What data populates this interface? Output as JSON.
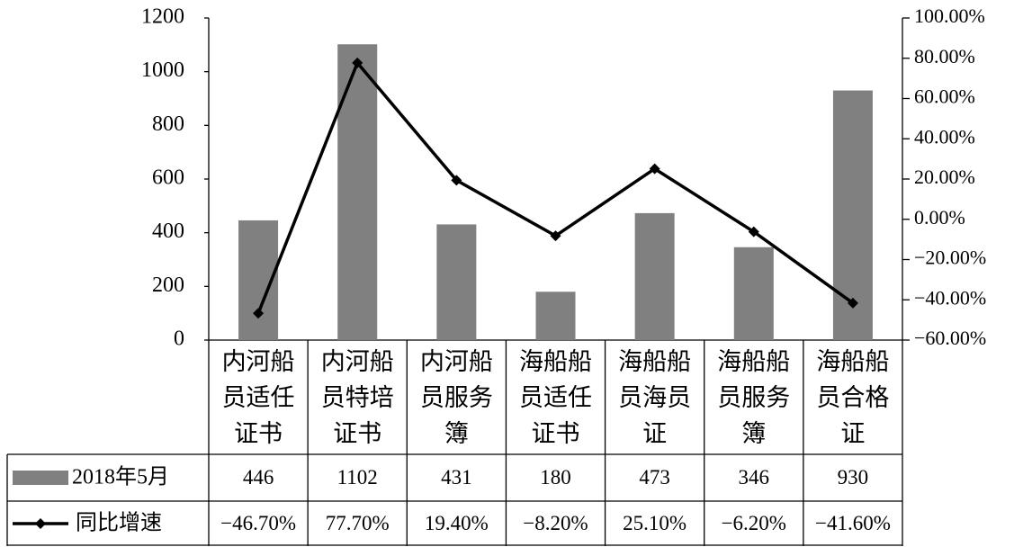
{
  "chart_data": {
    "type": "bar",
    "categories": [
      "内河船员适任证书",
      "内河船员特培证书",
      "内河船员服务簿",
      "海船船员适任证书",
      "海船船员海员证",
      "海船船员服务簿",
      "海船船员合格证"
    ],
    "series": [
      {
        "name": "2018年5月",
        "color": "#808080",
        "values": [
          446,
          1102,
          431,
          180,
          473,
          346,
          930
        ]
      },
      {
        "name": "同比增速",
        "type": "line",
        "axis": "y2",
        "color": "#000000",
        "values": [
          -46.7,
          77.7,
          19.4,
          -8.2,
          25.1,
          -6.2,
          -41.6
        ],
        "value_labels": [
          "−46.70%",
          "77.70%",
          "19.40%",
          "−8.20%",
          "25.10%",
          "−6.20%",
          "−41.60%"
        ]
      }
    ],
    "ylim": [
      0,
      1200
    ],
    "yticks": [
      0,
      200,
      400,
      600,
      800,
      1000,
      1200
    ],
    "y2lim": [
      -60,
      100
    ],
    "y2ticks": [
      {
        "value": -60,
        "label": "−60.00%"
      },
      {
        "value": -40,
        "label": "−40.00%"
      },
      {
        "value": -20,
        "label": "−20.00%"
      },
      {
        "value": 0,
        "label": "0.00%"
      },
      {
        "value": 20,
        "label": "20.00%"
      },
      {
        "value": 40,
        "label": "40.00%"
      },
      {
        "value": 60,
        "label": "60.00%"
      },
      {
        "value": 80,
        "label": "80.00%"
      },
      {
        "value": 100,
        "label": "100.00%"
      }
    ]
  }
}
